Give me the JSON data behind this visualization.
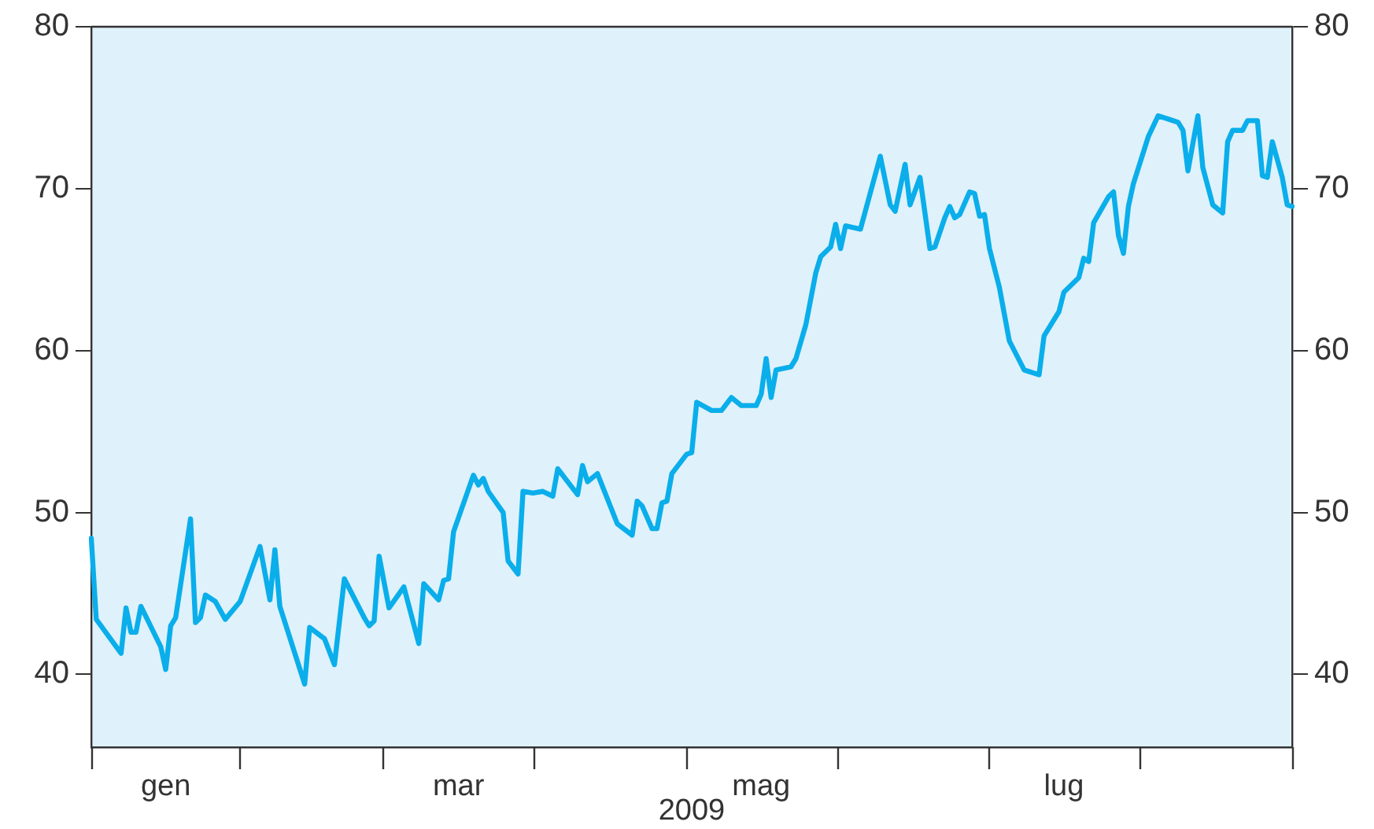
{
  "chart_data": {
    "type": "line",
    "xlabel": "2009",
    "categories": [
      null,
      null,
      null,
      null,
      null,
      null,
      null,
      null,
      null,
      null,
      null,
      null,
      null,
      null,
      null,
      "gen",
      null,
      null,
      null,
      null,
      null,
      null,
      null,
      null,
      null,
      null,
      null,
      null,
      null,
      null,
      null,
      null,
      null,
      null,
      null,
      null,
      null,
      null,
      null,
      null,
      null,
      null,
      null,
      null,
      null,
      null,
      null,
      null,
      null,
      null,
      null,
      null,
      null,
      null,
      null,
      null,
      null,
      null,
      null,
      null,
      null,
      null,
      null,
      null,
      null,
      null,
      null,
      null,
      null,
      null,
      null,
      null,
      null,
      null,
      "mar",
      null,
      null,
      null,
      null,
      null,
      null,
      null,
      null,
      null,
      null,
      null,
      null,
      null,
      null,
      null,
      null,
      null,
      null,
      null,
      null,
      null,
      null,
      null,
      null,
      null,
      null,
      null,
      null,
      null,
      null,
      null,
      null,
      null,
      null,
      null,
      null,
      null,
      null,
      null,
      null,
      null,
      null,
      null,
      null,
      null,
      null,
      null,
      null,
      null,
      null,
      null,
      null,
      null,
      null,
      null,
      null,
      null,
      null,
      null,
      null,
      "mag",
      null,
      null,
      null,
      null,
      null,
      null,
      null,
      null,
      null,
      null,
      null,
      null,
      null,
      null,
      null,
      null,
      null,
      null,
      null,
      null,
      null,
      null,
      null,
      null,
      null,
      null,
      null,
      null,
      null,
      null,
      null,
      null,
      null,
      null,
      null,
      null,
      null,
      null,
      null,
      null,
      null,
      null,
      null,
      null,
      null,
      null,
      null,
      null,
      null,
      null,
      null,
      null,
      null,
      null,
      null,
      null,
      null,
      null,
      null,
      null,
      "lug",
      null,
      null,
      null,
      null,
      null,
      null,
      null,
      null,
      null,
      null,
      null,
      null,
      null,
      null,
      null,
      null,
      null,
      null,
      null,
      null,
      null,
      null,
      null,
      null,
      null,
      null,
      null,
      null,
      null,
      null,
      null,
      null,
      null,
      null,
      null,
      null,
      null,
      null,
      null,
      null,
      null,
      null,
      null,
      null,
      null,
      null
    ],
    "series": [
      {
        "color": "#0aaeea",
        "values": [
          48.4,
          43.4,
          null,
          null,
          null,
          null,
          41.3,
          44.1,
          42.6,
          42.6,
          44.2,
          null,
          null,
          null,
          41.7,
          40.3,
          43.0,
          43.5,
          null,
          null,
          49.6,
          43.2,
          43.5,
          44.9,
          null,
          44.5,
          null,
          43.4,
          null,
          null,
          44.5,
          null,
          null,
          null,
          47.9,
          null,
          44.6,
          47.7,
          44.2,
          null,
          null,
          null,
          null,
          39.4,
          42.9,
          null,
          null,
          42.2,
          null,
          40.6,
          null,
          45.9,
          null,
          null,
          null,
          43.5,
          43.0,
          43.3,
          47.3,
          null,
          44.1,
          null,
          null,
          45.4,
          null,
          null,
          41.9,
          45.6,
          null,
          null,
          44.6,
          45.8,
          45.9,
          48.8,
          null,
          null,
          null,
          52.3,
          51.7,
          52.1,
          51.3,
          null,
          null,
          50.0,
          47.0,
          null,
          46.2,
          51.3,
          null,
          51.2,
          null,
          51.3,
          null,
          51.0,
          52.7,
          null,
          null,
          null,
          51.1,
          52.9,
          51.9,
          null,
          52.4,
          null,
          null,
          null,
          49.3,
          null,
          null,
          48.6,
          50.7,
          50.4,
          null,
          49.0,
          49.0,
          50.6,
          50.7,
          52.4,
          null,
          null,
          53.6,
          53.7,
          56.8,
          null,
          null,
          56.3,
          null,
          56.3,
          null,
          57.1,
          null,
          56.6,
          null,
          null,
          56.6,
          57.3,
          59.5,
          57.1,
          58.8,
          null,
          null,
          59.0,
          59.5,
          null,
          61.6,
          null,
          64.8,
          65.8,
          null,
          66.4,
          67.8,
          66.3,
          67.7,
          null,
          null,
          67.5,
          null,
          null,
          null,
          72.0,
          null,
          69.0,
          68.6,
          null,
          71.5,
          69.0,
          null,
          70.7,
          null,
          66.3,
          66.4,
          null,
          68.2,
          68.9,
          68.2,
          68.4,
          null,
          69.8,
          69.7,
          68.3,
          68.4,
          66.3,
          null,
          63.9,
          null,
          60.6,
          null,
          null,
          58.8,
          null,
          null,
          58.5,
          60.9,
          null,
          null,
          62.4,
          63.6,
          null,
          null,
          64.5,
          65.7,
          65.5,
          67.9,
          null,
          null,
          69.5,
          69.8,
          67.1,
          66.0,
          68.9,
          70.3,
          null,
          null,
          73.2,
          null,
          74.5,
          null,
          null,
          74.2,
          74.1,
          73.6,
          71.1,
          null,
          74.5,
          71.3,
          null,
          69.0,
          null,
          68.5,
          72.9,
          73.6,
          null,
          73.6,
          74.2,
          null,
          74.2,
          70.8,
          70.7,
          72.9,
          null,
          70.7,
          69.0,
          68.9
        ]
      }
    ],
    "ylim": [
      35.5,
      80
    ],
    "yticks": [
      40,
      50,
      60,
      70,
      80
    ],
    "y2lim": [
      35.5,
      80
    ],
    "y2ticks": [
      40,
      50,
      60,
      70,
      80
    ],
    "grid": false,
    "legend": false,
    "marker": "none",
    "line_style": "solid"
  }
}
